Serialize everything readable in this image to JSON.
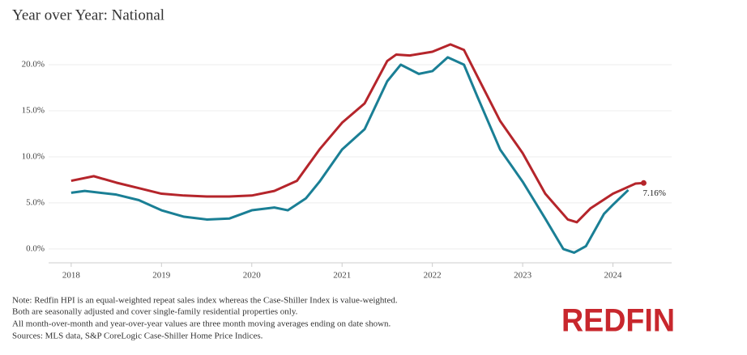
{
  "chart_data": {
    "type": "line",
    "title": "Year over Year:  National",
    "xlim": [
      2017.75,
      2024.65
    ],
    "xticks": [
      2018,
      2019,
      2020,
      2021,
      2022,
      2023,
      2024
    ],
    "ylim": [
      -1.5,
      22.5
    ],
    "yticks": [
      {
        "value": 0,
        "label": "0.0%"
      },
      {
        "value": 5,
        "label": "5.0%"
      },
      {
        "value": 10,
        "label": "10.0%"
      },
      {
        "value": 15,
        "label": "15.0%"
      },
      {
        "value": 20,
        "label": "20.0%"
      }
    ],
    "grid": true,
    "series": [
      {
        "color": "#b5252b",
        "x": [
          2018.0,
          2018.25,
          2018.5,
          2018.75,
          2019.0,
          2019.25,
          2019.5,
          2019.75,
          2020.0,
          2020.25,
          2020.5,
          2020.75,
          2021.0,
          2021.25,
          2021.5,
          2021.6,
          2021.75,
          2022.0,
          2022.2,
          2022.35,
          2022.5,
          2022.75,
          2023.0,
          2023.25,
          2023.5,
          2023.6,
          2023.75,
          2024.0,
          2024.25,
          2024.34
        ],
        "values": [
          7.4,
          7.9,
          7.2,
          6.6,
          6.0,
          5.8,
          5.7,
          5.7,
          5.8,
          6.3,
          7.4,
          10.8,
          13.7,
          15.8,
          20.4,
          21.1,
          21.0,
          21.4,
          22.2,
          21.6,
          18.7,
          13.9,
          10.4,
          6.0,
          3.2,
          2.9,
          4.4,
          6.0,
          7.1,
          7.16
        ],
        "value_labels": [
          null,
          null,
          null,
          null,
          null,
          null,
          null,
          null,
          null,
          null,
          null,
          null,
          null,
          null,
          null,
          null,
          null,
          null,
          null,
          null,
          null,
          null,
          null,
          null,
          null,
          null,
          null,
          null,
          null,
          "7.16%"
        ]
      },
      {
        "color": "#1a7f95",
        "x": [
          2018.0,
          2018.15,
          2018.5,
          2018.75,
          2019.0,
          2019.25,
          2019.5,
          2019.75,
          2020.0,
          2020.25,
          2020.4,
          2020.6,
          2020.75,
          2021.0,
          2021.25,
          2021.5,
          2021.65,
          2021.85,
          2022.0,
          2022.17,
          2022.35,
          2022.5,
          2022.75,
          2023.0,
          2023.25,
          2023.45,
          2023.57,
          2023.7,
          2023.9,
          2024.0,
          2024.17
        ],
        "values": [
          6.1,
          6.3,
          5.9,
          5.3,
          4.2,
          3.5,
          3.2,
          3.3,
          4.2,
          4.5,
          4.2,
          5.5,
          7.3,
          10.8,
          13.0,
          18.2,
          20.0,
          19.0,
          19.3,
          20.8,
          20.0,
          16.5,
          10.8,
          7.3,
          3.3,
          0.0,
          -0.4,
          0.3,
          3.8,
          4.8,
          6.4
        ]
      }
    ],
    "notes": [
      "Note: Redfin HPI is an equal-weighted repeat sales index whereas the Case-Shiller Index is value-weighted.",
      "Both are seasonally adjusted and cover single-family residential properties only.",
      "All month-over-month and year-over-year values are three month moving averages ending on date shown.",
      "Sources: MLS data, S&P CoreLogic Case-Shiller Home Price Indices."
    ],
    "logo": "REDFIN"
  }
}
